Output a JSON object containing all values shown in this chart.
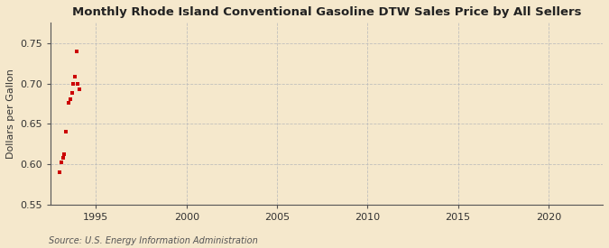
{
  "title": "Monthly Rhode Island Conventional Gasoline DTW Sales Price by All Sellers",
  "ylabel": "Dollars per Gallon",
  "source": "Source: U.S. Energy Information Administration",
  "background_color": "#f5e8cc",
  "plot_background_color": "#f5e8cc",
  "grid_color": "#bbbbbb",
  "data_color": "#cc0000",
  "xlim": [
    1992.5,
    2023.0
  ],
  "ylim": [
    0.55,
    0.775
  ],
  "xticks": [
    1995,
    2000,
    2005,
    2010,
    2015,
    2020
  ],
  "yticks": [
    0.55,
    0.6,
    0.65,
    0.7,
    0.75
  ],
  "data_x": [
    1993.0,
    1993.083,
    1993.167,
    1993.25,
    1993.333,
    1993.5,
    1993.583,
    1993.667,
    1993.75,
    1993.833,
    1993.917,
    1994.0,
    1994.083
  ],
  "data_y": [
    0.59,
    0.602,
    0.608,
    0.612,
    0.64,
    0.676,
    0.68,
    0.688,
    0.7,
    0.708,
    0.74,
    0.7,
    0.693
  ],
  "marker_size": 3.5,
  "title_fontsize": 9.5,
  "label_fontsize": 8,
  "tick_fontsize": 8,
  "source_fontsize": 7
}
